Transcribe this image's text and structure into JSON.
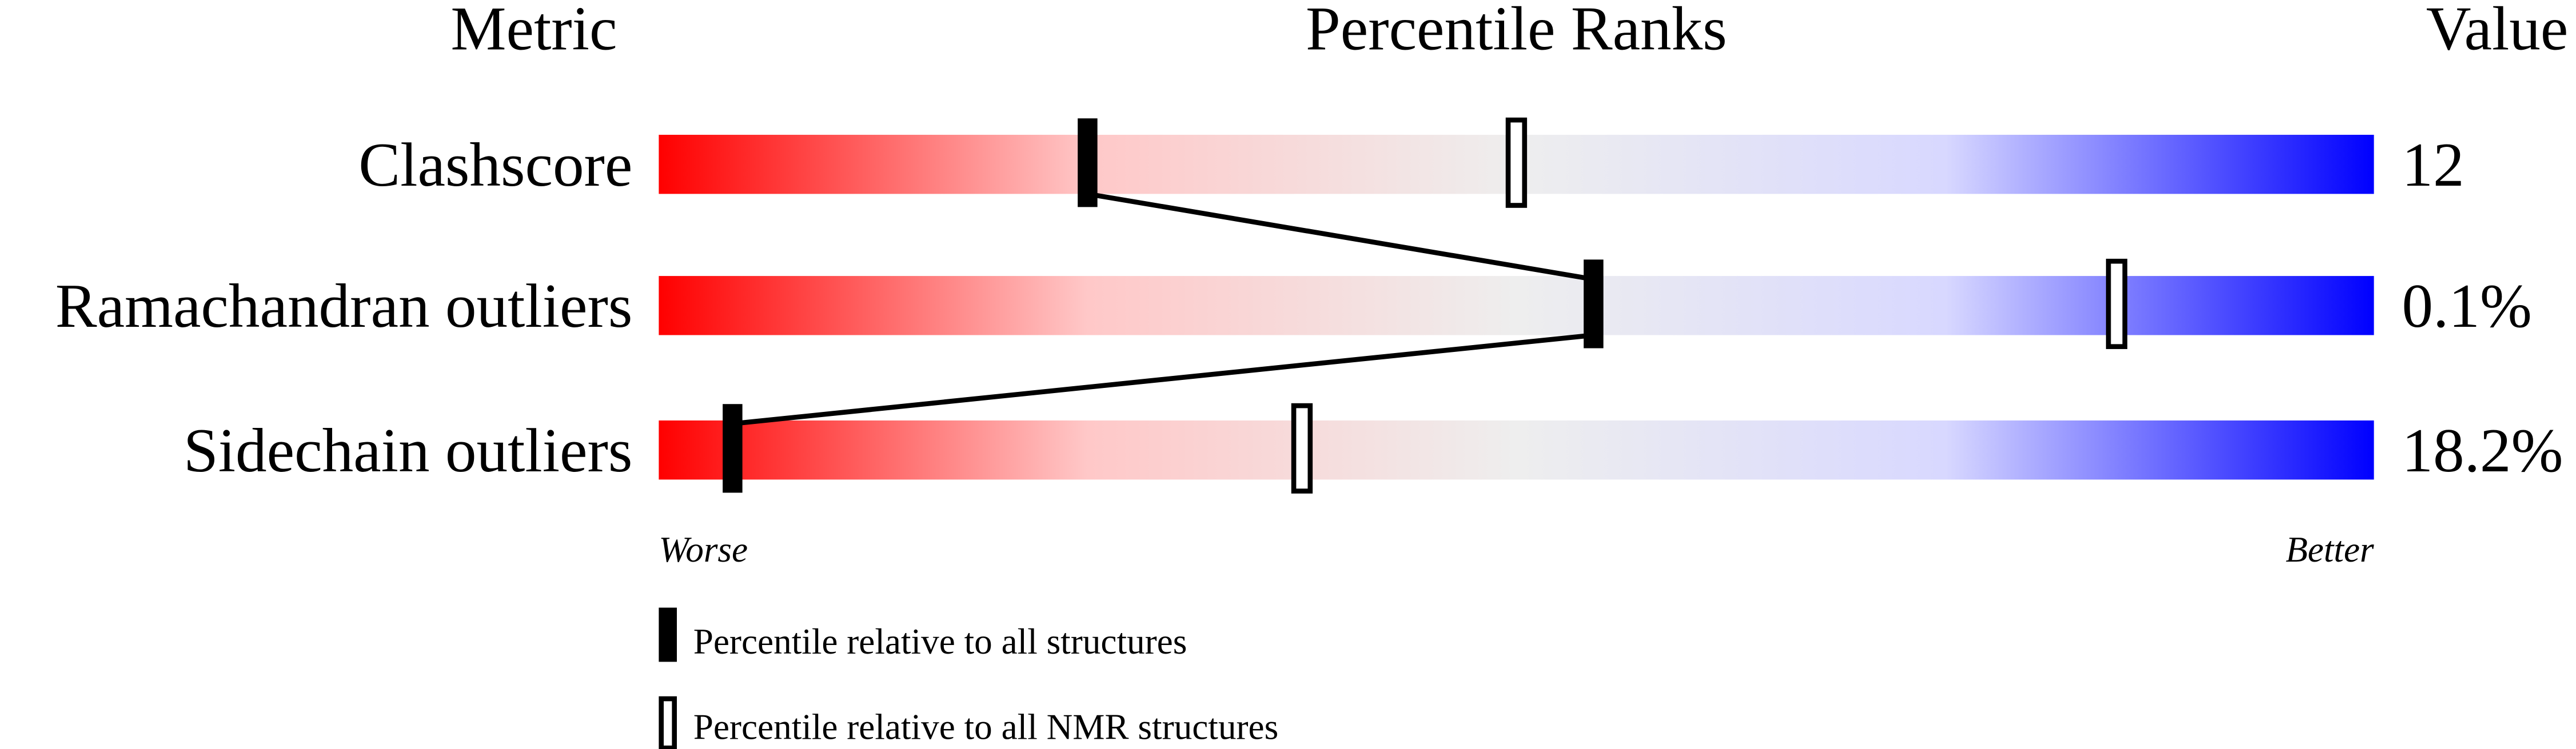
{
  "chart_data": {
    "type": "percentile-bar",
    "headers": {
      "metric": "Metric",
      "ranks": "Percentile Ranks",
      "value": "Value"
    },
    "rows": [
      {
        "metric": "Clashscore",
        "value": "12",
        "percentile_all": 25,
        "percentile_nmr": 50
      },
      {
        "metric": "Ramachandran outliers",
        "value": "0.1%",
        "percentile_all": 54.5,
        "percentile_nmr": 85
      },
      {
        "metric": "Sidechain outliers",
        "value": "18.2%",
        "percentile_all": 4.3,
        "percentile_nmr": 37.5
      }
    ],
    "xlim": [
      0,
      100
    ],
    "axis_labels": {
      "left": "Worse",
      "right": "Better"
    },
    "legend": {
      "all": "Percentile relative to all structures",
      "nmr": "Percentile relative to all NMR structures"
    },
    "colors": {
      "worse": "#ff0000",
      "middle": "#eeeeee",
      "better": "#0000ff"
    }
  }
}
